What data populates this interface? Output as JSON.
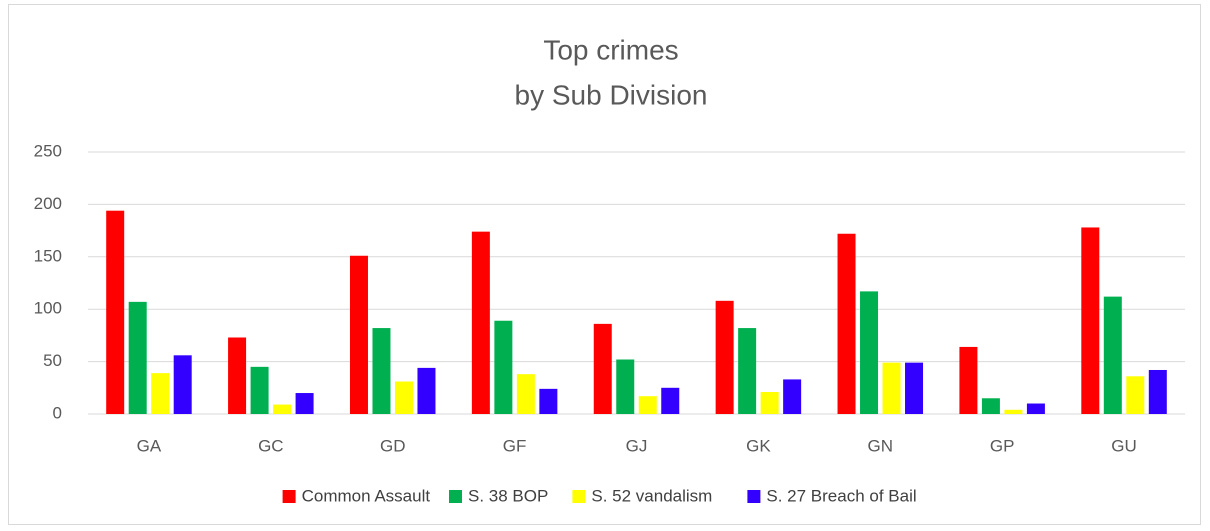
{
  "chart_data": {
    "type": "bar",
    "title": "Top crimes",
    "subtitle": "by Sub Division",
    "categories": [
      "GA",
      "GC",
      "GD",
      "GF",
      "GJ",
      "GK",
      "GN",
      "GP",
      "GU"
    ],
    "series": [
      {
        "name": "Common Assault",
        "color": "#ff0000",
        "values": [
          194,
          73,
          151,
          174,
          86,
          108,
          172,
          64,
          178
        ]
      },
      {
        "name": "S. 38 BOP",
        "color": "#00b050",
        "values": [
          107,
          45,
          82,
          89,
          52,
          82,
          117,
          15,
          112
        ]
      },
      {
        "name": "S. 52 vandalism",
        "color": "#ffff00",
        "values": [
          39,
          9,
          31,
          38,
          17,
          21,
          49,
          4,
          36
        ]
      },
      {
        "name": "S. 27 Breach of Bail",
        "color": "#3300ff",
        "values": [
          56,
          20,
          44,
          24,
          25,
          33,
          49,
          10,
          42
        ]
      }
    ],
    "ylim": [
      0,
      250
    ],
    "yticks": [
      0,
      50,
      100,
      150,
      200,
      250
    ],
    "grid": true,
    "legend": "bottom"
  }
}
